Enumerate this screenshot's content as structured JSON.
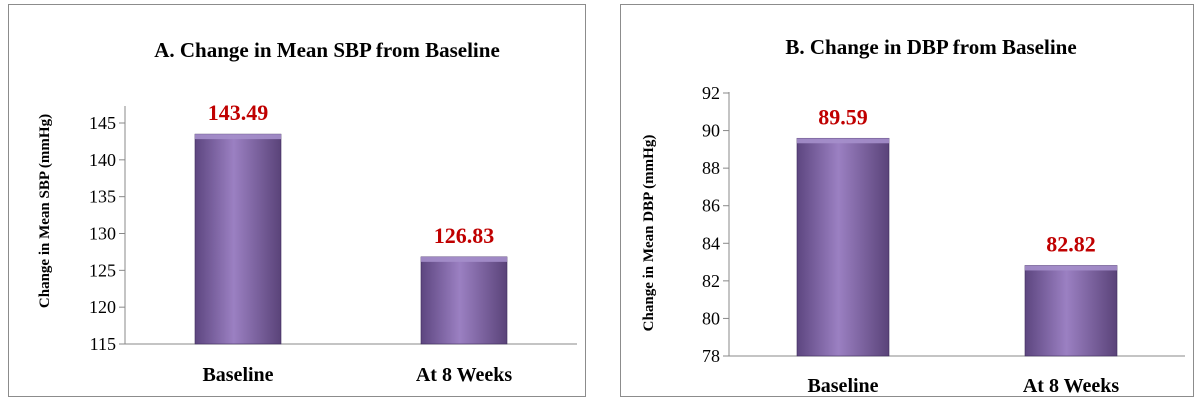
{
  "chart_data": [
    {
      "type": "bar",
      "title": "A. Change in Mean SBP from Baseline",
      "xlabel": "",
      "ylabel": "Change in Mean SBP (mmHg)",
      "categories": [
        "Baseline",
        "At 8 Weeks"
      ],
      "values": [
        143.49,
        126.83
      ],
      "data_labels": [
        "143.49",
        "126.83"
      ],
      "ylim": [
        115,
        145
      ],
      "yticks": [
        115,
        120,
        125,
        130,
        135,
        140,
        145
      ],
      "grid": false,
      "legend": "none",
      "bar_color": "#8064a2",
      "label_color": "#c00000"
    },
    {
      "type": "bar",
      "title": "B. Change in DBP from Baseline",
      "xlabel": "",
      "ylabel": "Change in Mean DBP (mmHg)",
      "categories": [
        "Baseline",
        "At 8 Weeks"
      ],
      "values": [
        89.59,
        82.82
      ],
      "data_labels": [
        "89.59",
        "82.82"
      ],
      "ylim": [
        78,
        92
      ],
      "yticks": [
        78,
        80,
        82,
        84,
        86,
        88,
        90,
        92
      ],
      "grid": false,
      "legend": "none",
      "bar_color": "#8064a2",
      "label_color": "#c00000"
    }
  ]
}
